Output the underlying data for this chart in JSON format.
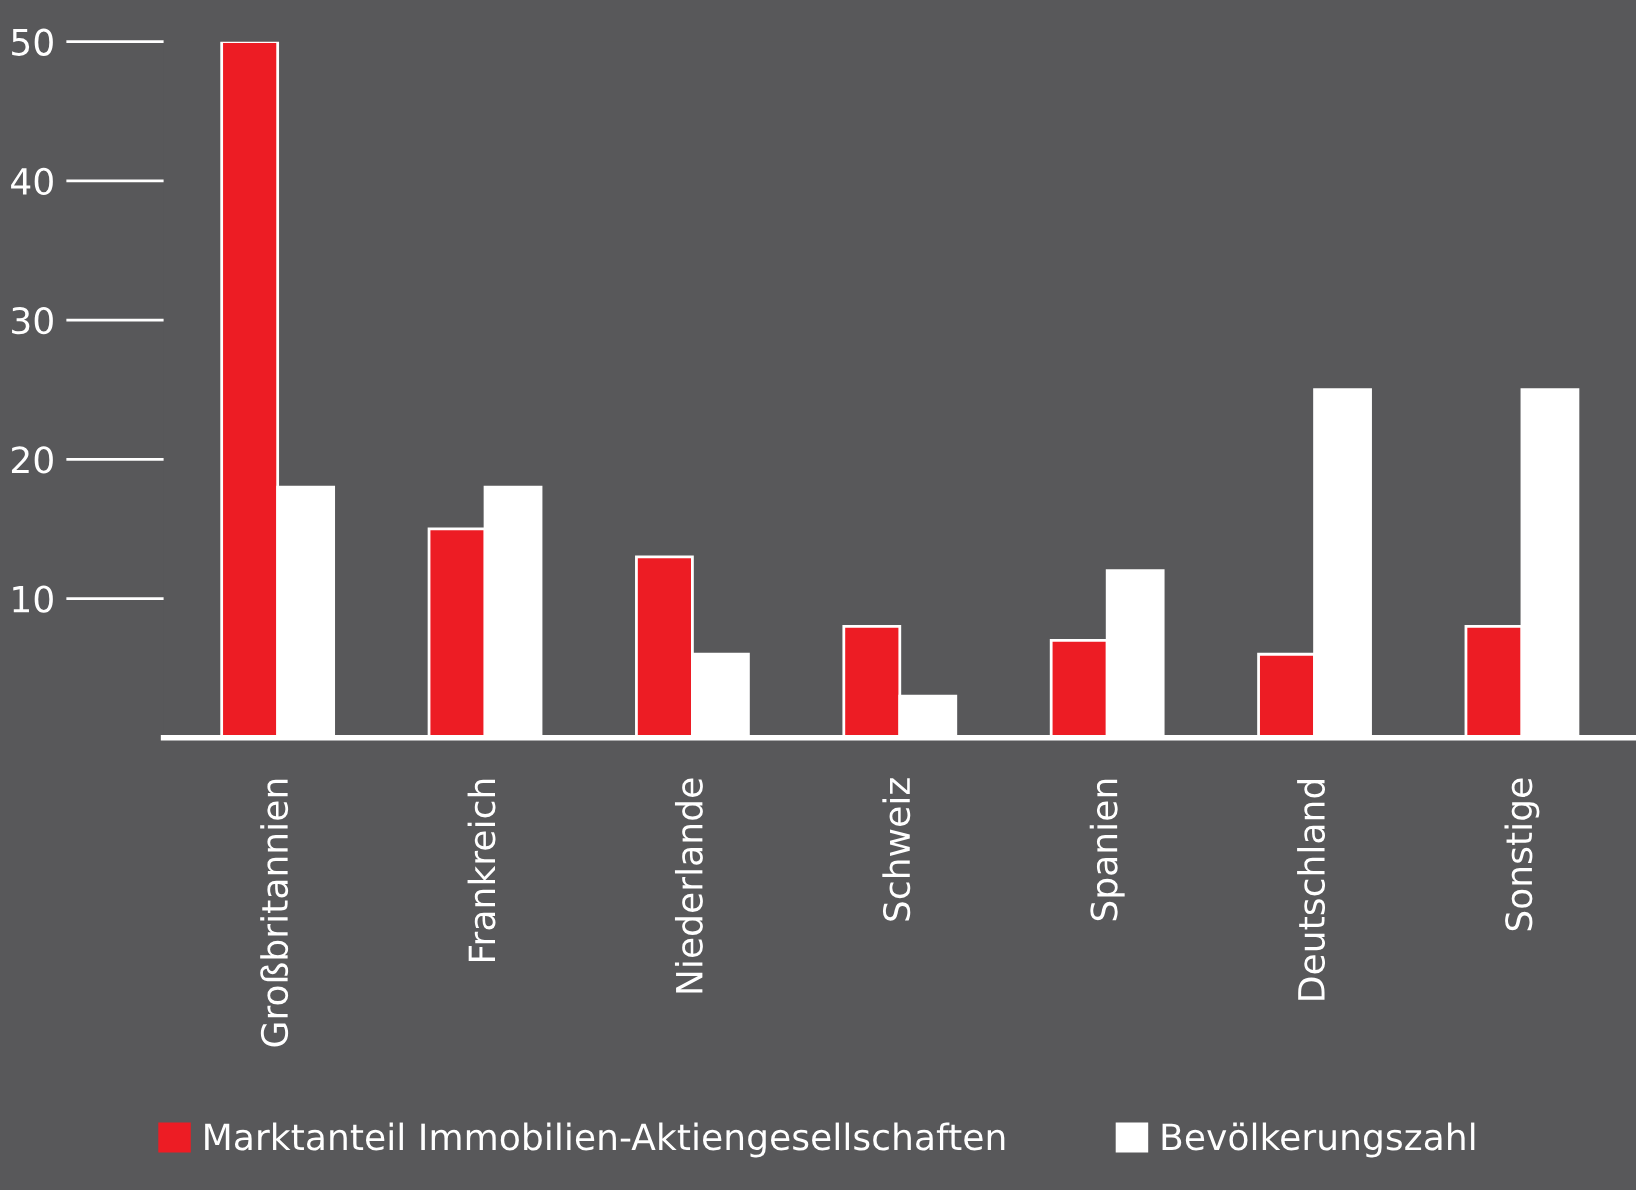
{
  "chart_data": {
    "type": "bar",
    "categories": [
      "Großbritannien",
      "Frankreich",
      "Niederlande",
      "Schweiz",
      "Spanien",
      "Deutschland",
      "Sonstige"
    ],
    "series": [
      {
        "name": "Marktanteil Immobilien-Aktiengesellschaften",
        "color": "#ed1c24",
        "values": [
          50,
          15,
          13,
          8,
          7,
          6,
          8
        ]
      },
      {
        "name": "Bevölkerungszahl",
        "color": "#ffffff",
        "values": [
          18,
          18,
          6,
          3,
          12,
          25,
          25
        ]
      }
    ],
    "ylim": [
      0,
      50
    ],
    "yticks": [
      10,
      20,
      30,
      40,
      50
    ],
    "grid": false,
    "legend": "bottom"
  }
}
